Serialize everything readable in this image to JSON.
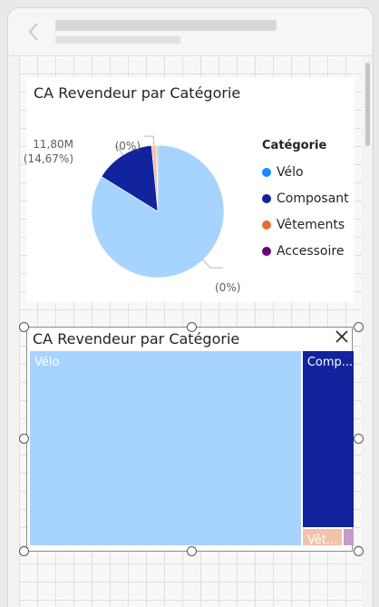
{
  "header": {
    "back_icon": "chevron-left-icon"
  },
  "pie_visual": {
    "title": "CA Revendeur par Catégorie"
  },
  "treemap_visual": {
    "title": "CA Revendeur par Catégorie",
    "close_icon": "close-icon"
  },
  "legend": {
    "title": "Catégorie",
    "items": [
      {
        "label": "Vélo",
        "color": "#118dff"
      },
      {
        "label": "Composant",
        "color": "#12239e"
      },
      {
        "label": "Vêtements",
        "color": "#e66c37"
      },
      {
        "label": "Accessoire",
        "color": "#6b007b"
      }
    ]
  },
  "chart_data": [
    {
      "type": "pie",
      "title": "CA Revendeur par Catégorie",
      "legend_title": "Catégorie",
      "legend_position": "right",
      "slices": [
        {
          "name": "Vélo",
          "percent": 83.8,
          "color": "#a7d3ff",
          "label": "(0%)"
        },
        {
          "name": "Composant",
          "percent": 14.67,
          "value_label": "11,80M",
          "label": "(14,67%)",
          "color": "#12239e"
        },
        {
          "name": "Vêtements",
          "percent": 1.2,
          "color": "#f4c2a8",
          "label": "(0%)"
        },
        {
          "name": "Accessoire",
          "percent": 0.33,
          "color": "#c59bc9"
        }
      ]
    },
    {
      "type": "treemap",
      "title": "CA Revendeur par Catégorie",
      "items": [
        {
          "name": "Vélo",
          "label": "Vélo",
          "percent": 83.8,
          "color": "#a7d3ff"
        },
        {
          "name": "Composant",
          "label": "Comp...",
          "percent": 14.67,
          "color": "#12239e"
        },
        {
          "name": "Vêtements",
          "label": "Vêt...",
          "percent": 1.2,
          "color": "#f4c2a8"
        },
        {
          "name": "Accessoire",
          "label": "",
          "percent": 0.33,
          "color": "#c59bc9"
        }
      ]
    }
  ]
}
